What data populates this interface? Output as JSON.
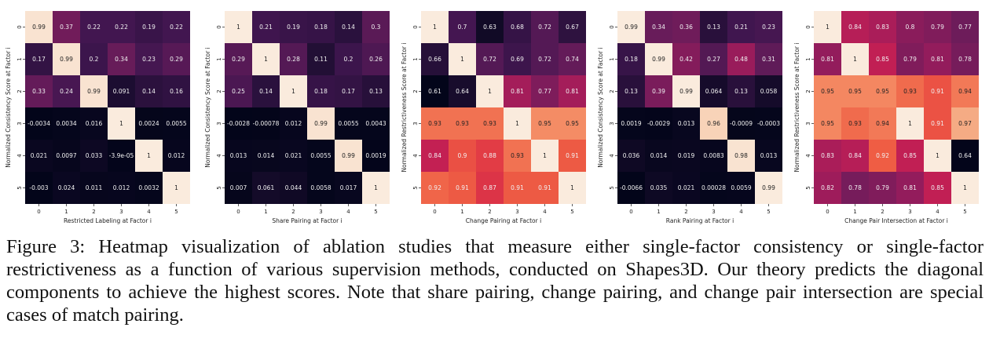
{
  "chart_data": [
    {
      "type": "heatmap",
      "xlabel": "Restricted Labeling at Factor i",
      "ylabel": "Normalized Consistency Score at Factor i",
      "x_ticks": [
        "0",
        "1",
        "2",
        "3",
        "4",
        "5"
      ],
      "y_ticks": [
        "0",
        "1",
        "2",
        "3",
        "4",
        "5"
      ],
      "values": [
        [
          "0.99",
          "0.37",
          "0.22",
          "0.22",
          "0.19",
          "0.22"
        ],
        [
          "0.17",
          "0.99",
          "0.2",
          "0.34",
          "0.23",
          "0.29"
        ],
        [
          "0.33",
          "0.24",
          "0.99",
          "0.091",
          "0.14",
          "0.16"
        ],
        [
          "-0.0034",
          "0.0034",
          "0.016",
          "1",
          "0.0024",
          "0.0055"
        ],
        [
          "0.021",
          "0.0097",
          "0.033",
          "-3.9e-05",
          "1",
          "0.012"
        ],
        [
          "-0.003",
          "0.024",
          "0.011",
          "0.012",
          "0.0032",
          "1"
        ]
      ]
    },
    {
      "type": "heatmap",
      "xlabel": "Share Pairing at Factor i",
      "ylabel": "Normalized Consistency Score at Factor i",
      "x_ticks": [
        "0",
        "1",
        "2",
        "3",
        "4",
        "5"
      ],
      "y_ticks": [
        "0",
        "1",
        "2",
        "3",
        "4",
        "5"
      ],
      "values": [
        [
          "1",
          "0.21",
          "0.19",
          "0.18",
          "0.14",
          "0.3"
        ],
        [
          "0.29",
          "1",
          "0.28",
          "0.11",
          "0.2",
          "0.26"
        ],
        [
          "0.25",
          "0.14",
          "1",
          "0.18",
          "0.17",
          "0.13"
        ],
        [
          "-0.0028",
          "-0.00078",
          "0.012",
          "0.99",
          "0.0055",
          "0.0043"
        ],
        [
          "0.013",
          "0.014",
          "0.021",
          "0.0055",
          "0.99",
          "0.0019"
        ],
        [
          "0.007",
          "0.061",
          "0.044",
          "0.0058",
          "0.017",
          "1"
        ]
      ]
    },
    {
      "type": "heatmap",
      "xlabel": "Change Pairing at Factor i",
      "ylabel": "Normalized Restrictiveness Score at Factor i",
      "x_ticks": [
        "0",
        "1",
        "2",
        "3",
        "4",
        "5"
      ],
      "y_ticks": [
        "0",
        "1",
        "2",
        "3",
        "4",
        "5"
      ],
      "values": [
        [
          "1",
          "0.7",
          "0.63",
          "0.68",
          "0.72",
          "0.67"
        ],
        [
          "0.66",
          "1",
          "0.72",
          "0.69",
          "0.72",
          "0.74"
        ],
        [
          "0.61",
          "0.64",
          "1",
          "0.81",
          "0.77",
          "0.81"
        ],
        [
          "0.93",
          "0.93",
          "0.93",
          "1",
          "0.95",
          "0.95"
        ],
        [
          "0.84",
          "0.9",
          "0.88",
          "0.93",
          "1",
          "0.91"
        ],
        [
          "0.92",
          "0.91",
          "0.87",
          "0.91",
          "0.91",
          "1"
        ]
      ]
    },
    {
      "type": "heatmap",
      "xlabel": "Rank Pairing at Factor i",
      "ylabel": "Normalized Consistency Score at Factor i",
      "x_ticks": [
        "0",
        "1",
        "2",
        "3",
        "4",
        "5"
      ],
      "y_ticks": [
        "0",
        "1",
        "2",
        "3",
        "4",
        "5"
      ],
      "values": [
        [
          "0.99",
          "0.34",
          "0.36",
          "0.13",
          "0.21",
          "0.23"
        ],
        [
          "0.18",
          "0.99",
          "0.42",
          "0.27",
          "0.48",
          "0.31"
        ],
        [
          "0.13",
          "0.39",
          "0.99",
          "0.064",
          "0.13",
          "0.058"
        ],
        [
          "0.0019",
          "-0.0029",
          "0.013",
          "0.96",
          "-0.0009",
          "-0.0003"
        ],
        [
          "0.036",
          "0.014",
          "0.019",
          "0.0083",
          "0.98",
          "0.013"
        ],
        [
          "-0.0066",
          "0.035",
          "0.021",
          "0.00028",
          "0.0059",
          "0.99"
        ]
      ]
    },
    {
      "type": "heatmap",
      "xlabel": "Change Pair Intersection at Factor i",
      "ylabel": "Normalized Restrictiveness Score at Factor i",
      "x_ticks": [
        "0",
        "1",
        "2",
        "3",
        "4",
        "5"
      ],
      "y_ticks": [
        "0",
        "1",
        "2",
        "3",
        "4",
        "5"
      ],
      "values": [
        [
          "1",
          "0.84",
          "0.83",
          "0.8",
          "0.79",
          "0.77"
        ],
        [
          "0.81",
          "1",
          "0.85",
          "0.79",
          "0.81",
          "0.78"
        ],
        [
          "0.95",
          "0.95",
          "0.95",
          "0.93",
          "0.91",
          "0.94"
        ],
        [
          "0.95",
          "0.93",
          "0.94",
          "1",
          "0.91",
          "0.97"
        ],
        [
          "0.83",
          "0.84",
          "0.92",
          "0.85",
          "1",
          "0.64"
        ],
        [
          "0.82",
          "0.78",
          "0.79",
          "0.81",
          "0.85",
          "1"
        ]
      ]
    }
  ],
  "caption": "Figure 3: Heatmap visualization of ablation studies that measure either single-factor consistency or single-factor restrictiveness as a function of various supervision methods, conducted on Shapes3D. Our theory predicts the diagonal components to achieve the highest scores. Note that share pairing, change pairing, and change pair intersection are special cases of match pairing."
}
